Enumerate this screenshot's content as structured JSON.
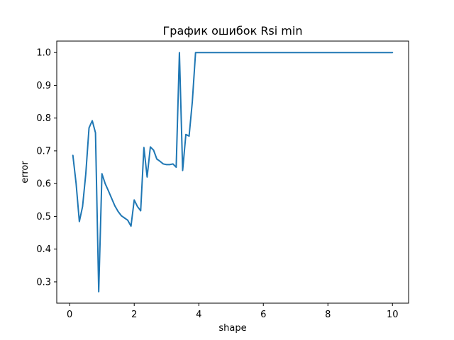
{
  "chart_data": {
    "type": "line",
    "title": "График ошибок Rsi min",
    "xlabel": "shape",
    "ylabel": "error",
    "xlim": [
      -0.4,
      10.5
    ],
    "ylim": [
      0.235,
      1.035
    ],
    "grid": false,
    "xticks": [
      0,
      2,
      4,
      6,
      8,
      10
    ],
    "yticks": [
      0.3,
      0.4,
      0.5,
      0.6,
      0.7,
      0.8,
      0.9,
      1.0
    ],
    "xtick_labels": [
      "0",
      "2",
      "4",
      "6",
      "8",
      "10"
    ],
    "ytick_labels": [
      "0.3",
      "0.4",
      "0.5",
      "0.6",
      "0.7",
      "0.8",
      "0.9",
      "1.0"
    ],
    "line_color": "#1f77b4",
    "series": [
      {
        "x": [
          0.1,
          0.2,
          0.3,
          0.4,
          0.5,
          0.6,
          0.7,
          0.8,
          0.9,
          1.0,
          1.1,
          1.2,
          1.3,
          1.4,
          1.5,
          1.6,
          1.7,
          1.8,
          1.9,
          2.0,
          2.1,
          2.2,
          2.3,
          2.4,
          2.5,
          2.6,
          2.7,
          2.8,
          2.9,
          3.0,
          3.1,
          3.2,
          3.3,
          3.4,
          3.5,
          3.6,
          3.7,
          3.8,
          3.9,
          10.0
        ],
        "y": [
          0.686,
          0.6,
          0.484,
          0.53,
          0.63,
          0.77,
          0.792,
          0.755,
          0.27,
          0.63,
          0.6,
          0.578,
          0.555,
          0.532,
          0.515,
          0.502,
          0.495,
          0.488,
          0.47,
          0.55,
          0.53,
          0.517,
          0.71,
          0.62,
          0.712,
          0.702,
          0.675,
          0.668,
          0.66,
          0.658,
          0.658,
          0.66,
          0.65,
          1.0,
          0.64,
          0.75,
          0.745,
          0.85,
          1.0,
          1.0
        ]
      }
    ]
  }
}
